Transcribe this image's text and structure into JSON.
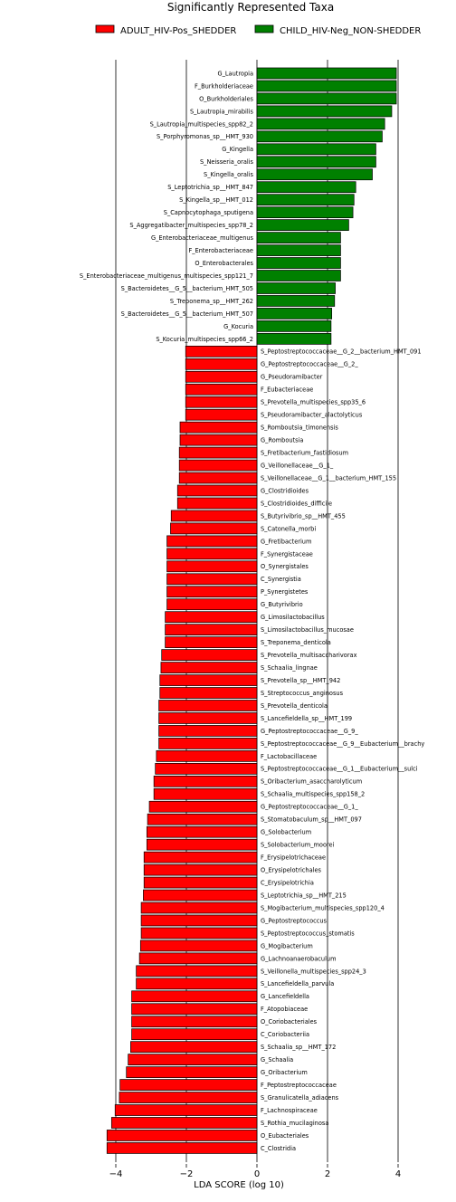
{
  "chart_data": {
    "type": "bar",
    "orientation": "horizontal",
    "title": "Significantly Represented Taxa",
    "xlabel": "LDA SCORE (log 10)",
    "ylabel": "",
    "xlim": [
      -4.5,
      4.5
    ],
    "xticks": [
      -4,
      -2,
      0,
      2,
      4
    ],
    "grid": "vertical lines at major ticks",
    "legend_position": "top",
    "series": [
      {
        "name": "ADULT_HIV-Pos_SHEDDER",
        "color": "#ff0000"
      },
      {
        "name": "CHILD_HIV-Neg_NON-SHEDDER",
        "color": "#008000"
      }
    ],
    "categories": [
      "G_Lautropia",
      "F_Burkholderiaceae",
      "O_Burkholderiales",
      "S_Lautropia_mirabilis",
      "S_Lautropia_multispecies_spp82_2",
      "S_Porphyromonas_sp__HMT_930",
      "G_Kingella",
      "S_Neisseria_oralis",
      "S_Kingella_oralis",
      "S_Leptotrichia_sp__HMT_847",
      "S_Kingella_sp__HMT_012",
      "S_Capnocytophaga_sputigena",
      "S_Aggregatibacter_multispecies_spp78_2",
      "G_Enterobacteriaceae_multigenus",
      "F_Enterobacteriaceae",
      "O_Enterobacterales",
      "S_Enterobacteriaceae_multigenus_multispecies_spp121_7",
      "S_Bacteroidetes__G_5__bacterium_HMT_505",
      "S_Treponema_sp__HMT_262",
      "S_Bacteroidetes__G_5__bacterium_HMT_507",
      "G_Kocuria",
      "S_Kocuria_multispecies_spp66_2",
      "S_Peptostreptococcaceae__G_2__bacterium_HMT_091",
      "G_Peptostreptococcaceae__G_2_",
      "G_Pseudoramibacter",
      "F_Eubacteriaceae",
      "S_Prevotella_multispecies_spp35_6",
      "S_Pseudoramibacter_alactolyticus",
      "S_Romboutsia_timonensis",
      "G_Romboutsia",
      "S_Fretibacterium_fastidiosum",
      "G_Veillonellaceae__G_1_",
      "S_Veillonellaceae__G_1__bacterium_HMT_155",
      "G_Clostridioides",
      "S_Clostridioides_difficile",
      "S_Butyrivibrio_sp__HMT_455",
      "S_Catonella_morbi",
      "G_Fretibacterium",
      "F_Synergistaceae",
      "O_Synergistales",
      "C_Synergistia",
      "P_Synergistetes",
      "G_Butyrivibrio",
      "G_Limosilactobacillus",
      "S_Limosilactobacillus_mucosae",
      "S_Treponema_denticola",
      "S_Prevotella_multisaccharivorax",
      "S_Schaalia_lingnae",
      "S_Prevotella_sp__HMT_942",
      "S_Streptococcus_anginosus",
      "S_Prevotella_denticola",
      "S_Lancefieldella_sp__HMT_199",
      "G_Peptostreptococcaceae__G_9_",
      "S_Peptostreptococcaceae__G_9__Eubacterium__brachy",
      "F_Lactobacillaceae",
      "S_Peptostreptococcaceae__G_1__Eubacterium__sulci",
      "S_Oribacterium_asaccharolyticum",
      "S_Schaalia_multispecies_spp158_2",
      "G_Peptostreptococcaceae__G_1_",
      "S_Stomatobaculum_sp__HMT_097",
      "G_Solobacterium",
      "S_Solobacterium_moorei",
      "F_Erysipelotrichaceae",
      "O_Erysipelotrichales",
      "C_Erysipelotrichia",
      "S_Leptotrichia_sp__HMT_215",
      "S_Mogibacterium_multispecies_spp120_4",
      "G_Peptostreptococcus",
      "S_Peptostreptococcus_stomatis",
      "G_Mogibacterium",
      "G_Lachnoanaerobaculum",
      "S_Veillonella_multispecies_spp24_3",
      "S_Lancefieldella_parvula",
      "G_Lancefieldella",
      "F_Atopobiaceae",
      "O_Coriobacteriales",
      "C_Coriobacteriia",
      "S_Schaalia_sp__HMT_172",
      "G_Schaalia",
      "G_Oribacterium",
      "F_Peptostreptococcaceae",
      "S_Granulicatella_adiacens",
      "F_Lachnospiraceae",
      "S_Rothia_mucilaginosa",
      "O_Eubacteriales",
      "C_Clostridia"
    ],
    "values": [
      3.95,
      3.95,
      3.95,
      3.82,
      3.62,
      3.55,
      3.37,
      3.37,
      3.27,
      2.8,
      2.75,
      2.72,
      2.6,
      2.37,
      2.37,
      2.37,
      2.37,
      2.22,
      2.2,
      2.12,
      2.1,
      2.1,
      -2.02,
      -2.02,
      -2.02,
      -2.02,
      -2.02,
      -2.02,
      -2.18,
      -2.18,
      -2.2,
      -2.2,
      -2.2,
      -2.25,
      -2.25,
      -2.43,
      -2.45,
      -2.55,
      -2.55,
      -2.55,
      -2.55,
      -2.55,
      -2.55,
      -2.6,
      -2.6,
      -2.6,
      -2.7,
      -2.72,
      -2.75,
      -2.75,
      -2.78,
      -2.78,
      -2.78,
      -2.78,
      -2.85,
      -2.88,
      -2.92,
      -2.92,
      -3.05,
      -3.1,
      -3.12,
      -3.12,
      -3.2,
      -3.2,
      -3.2,
      -3.22,
      -3.28,
      -3.28,
      -3.28,
      -3.3,
      -3.33,
      -3.42,
      -3.42,
      -3.55,
      -3.55,
      -3.55,
      -3.55,
      -3.58,
      -3.65,
      -3.7,
      -3.88,
      -3.9,
      -4.02,
      -4.12,
      -4.25,
      -4.25
    ]
  }
}
